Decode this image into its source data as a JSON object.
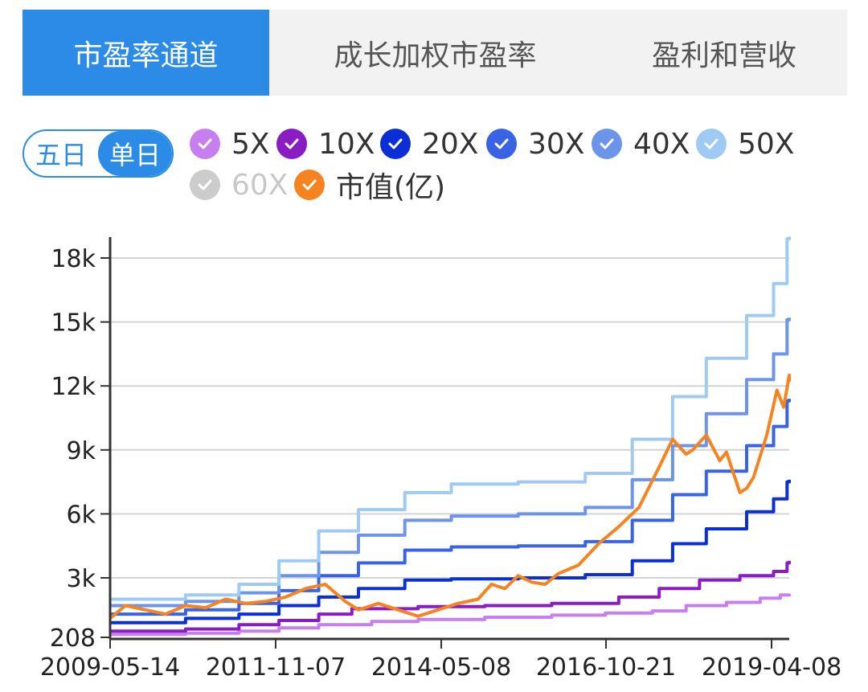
{
  "tabs": [
    {
      "label": "市盈率通道",
      "active": true
    },
    {
      "label": "成长加权市盈率",
      "active": false
    },
    {
      "label": "盈利和营收",
      "active": false
    }
  ],
  "toggle": {
    "options": [
      "五日",
      "单日"
    ],
    "selected": "单日"
  },
  "legend": [
    {
      "label": "5X",
      "color": "#c77ff0",
      "checked": true
    },
    {
      "label": "10X",
      "color": "#8a1cc4",
      "checked": true
    },
    {
      "label": "20X",
      "color": "#0b2fd6",
      "checked": true
    },
    {
      "label": "30X",
      "color": "#3863e4",
      "checked": true
    },
    {
      "label": "40X",
      "color": "#6c95ea",
      "checked": true
    },
    {
      "label": "50X",
      "color": "#9fcaf4",
      "checked": true
    },
    {
      "label": "60X",
      "color": "#cccccc",
      "checked": false
    },
    {
      "label": "市值(亿)",
      "color": "#f5831f",
      "checked": true
    }
  ],
  "chart_data": {
    "type": "line",
    "xlabel": "",
    "ylabel": "",
    "yticks": [
      "208",
      "3k",
      "6k",
      "9k",
      "12k",
      "15k",
      "18k"
    ],
    "ytick_values": [
      208,
      3000,
      6000,
      9000,
      12000,
      15000,
      18000
    ],
    "ylim": [
      208,
      19000
    ],
    "xticks": [
      "2009-05-14",
      "2011-11-07",
      "2014-05-08",
      "2016-10-21",
      "2019-04-08"
    ],
    "xlim": [
      2009.37,
      2019.65
    ],
    "grid": true,
    "series": [
      {
        "name": "5X",
        "color": "#c77ff0",
        "step": true,
        "x": [
          2009.37,
          2010.5,
          2011.3,
          2011.9,
          2012.5,
          2013.3,
          2014.0,
          2015.0,
          2016.0,
          2016.8,
          2017.5,
          2018.0,
          2018.6,
          2019.1,
          2019.4,
          2019.65
        ],
        "y": [
          350,
          400,
          500,
          650,
          800,
          950,
          1050,
          1150,
          1250,
          1350,
          1450,
          1700,
          1850,
          2050,
          2200,
          2250
        ]
      },
      {
        "name": "10X",
        "color": "#8a1cc4",
        "step": true,
        "x": [
          2009.37,
          2010.5,
          2011.3,
          2011.9,
          2012.5,
          2013.0,
          2014.0,
          2015.0,
          2016.0,
          2017.0,
          2017.6,
          2018.2,
          2018.8,
          2019.3,
          2019.5,
          2019.65
        ],
        "y": [
          500,
          600,
          800,
          1000,
          1300,
          1550,
          1650,
          1700,
          1800,
          2100,
          2500,
          2900,
          3100,
          3300,
          3700,
          3800
        ]
      },
      {
        "name": "20X",
        "color": "#0b2fd6",
        "step": true,
        "x": [
          2009.37,
          2010.5,
          2011.3,
          2011.9,
          2012.5,
          2013.1,
          2013.8,
          2014.5,
          2015.5,
          2016.5,
          2017.2,
          2017.8,
          2018.3,
          2018.9,
          2019.3,
          2019.5,
          2019.65
        ],
        "y": [
          900,
          1100,
          1300,
          1700,
          2100,
          2500,
          2900,
          2950,
          3000,
          3150,
          3800,
          4600,
          5300,
          6100,
          6700,
          7500,
          7600
        ]
      },
      {
        "name": "30X",
        "color": "#3863e4",
        "step": true,
        "x": [
          2009.37,
          2010.5,
          2011.3,
          2011.9,
          2012.5,
          2013.1,
          2013.8,
          2014.5,
          2015.5,
          2016.5,
          2017.2,
          2017.8,
          2018.3,
          2018.9,
          2019.3,
          2019.5,
          2019.65
        ],
        "y": [
          1300,
          1500,
          1800,
          2400,
          3100,
          3700,
          4300,
          4450,
          4500,
          4700,
          5700,
          6900,
          8000,
          9200,
          10100,
          11300,
          11400
        ]
      },
      {
        "name": "40X",
        "color": "#6c95ea",
        "step": true,
        "x": [
          2009.37,
          2010.5,
          2011.3,
          2011.9,
          2012.5,
          2013.1,
          2013.8,
          2014.5,
          2015.5,
          2016.5,
          2017.2,
          2017.8,
          2018.3,
          2018.9,
          2019.3,
          2019.5,
          2019.65
        ],
        "y": [
          1700,
          1900,
          2300,
          3100,
          4200,
          5000,
          5700,
          5900,
          6000,
          6300,
          7600,
          9200,
          10700,
          12300,
          13500,
          15100,
          15200
        ]
      },
      {
        "name": "50X",
        "color": "#9fcaf4",
        "step": true,
        "x": [
          2009.37,
          2010.5,
          2011.3,
          2011.9,
          2012.5,
          2013.1,
          2013.8,
          2014.5,
          2015.5,
          2016.5,
          2017.2,
          2017.8,
          2018.3,
          2018.9,
          2019.3,
          2019.5,
          2019.65
        ],
        "y": [
          2000,
          2200,
          2700,
          3800,
          5200,
          6200,
          7000,
          7400,
          7500,
          7900,
          9500,
          11500,
          13300,
          15300,
          16800,
          18900,
          19000
        ]
      },
      {
        "name": "市值(亿)",
        "color": "#f5831f",
        "step": false,
        "x": [
          2009.37,
          2009.6,
          2009.9,
          2010.2,
          2010.5,
          2010.8,
          2011.1,
          2011.4,
          2011.7,
          2012.0,
          2012.3,
          2012.6,
          2012.9,
          2013.1,
          2013.4,
          2013.7,
          2014.0,
          2014.3,
          2014.6,
          2014.9,
          2015.1,
          2015.3,
          2015.5,
          2015.7,
          2015.9,
          2016.1,
          2016.4,
          2016.7,
          2017.0,
          2017.3,
          2017.6,
          2017.8,
          2018.0,
          2018.1,
          2018.3,
          2018.5,
          2018.6,
          2018.8,
          2018.9,
          2019.0,
          2019.2,
          2019.35,
          2019.45,
          2019.55,
          2019.65
        ],
        "y": [
          1100,
          1700,
          1500,
          1300,
          1700,
          1600,
          2000,
          1800,
          1900,
          2100,
          2500,
          2700,
          1900,
          1500,
          1800,
          1500,
          1200,
          1500,
          1800,
          2000,
          2700,
          2500,
          3100,
          2800,
          2700,
          3200,
          3600,
          4600,
          5400,
          6300,
          8200,
          9500,
          8800,
          9000,
          9700,
          8500,
          8900,
          7000,
          7200,
          7700,
          9700,
          11800,
          11000,
          12500,
          12200
        ]
      }
    ]
  }
}
